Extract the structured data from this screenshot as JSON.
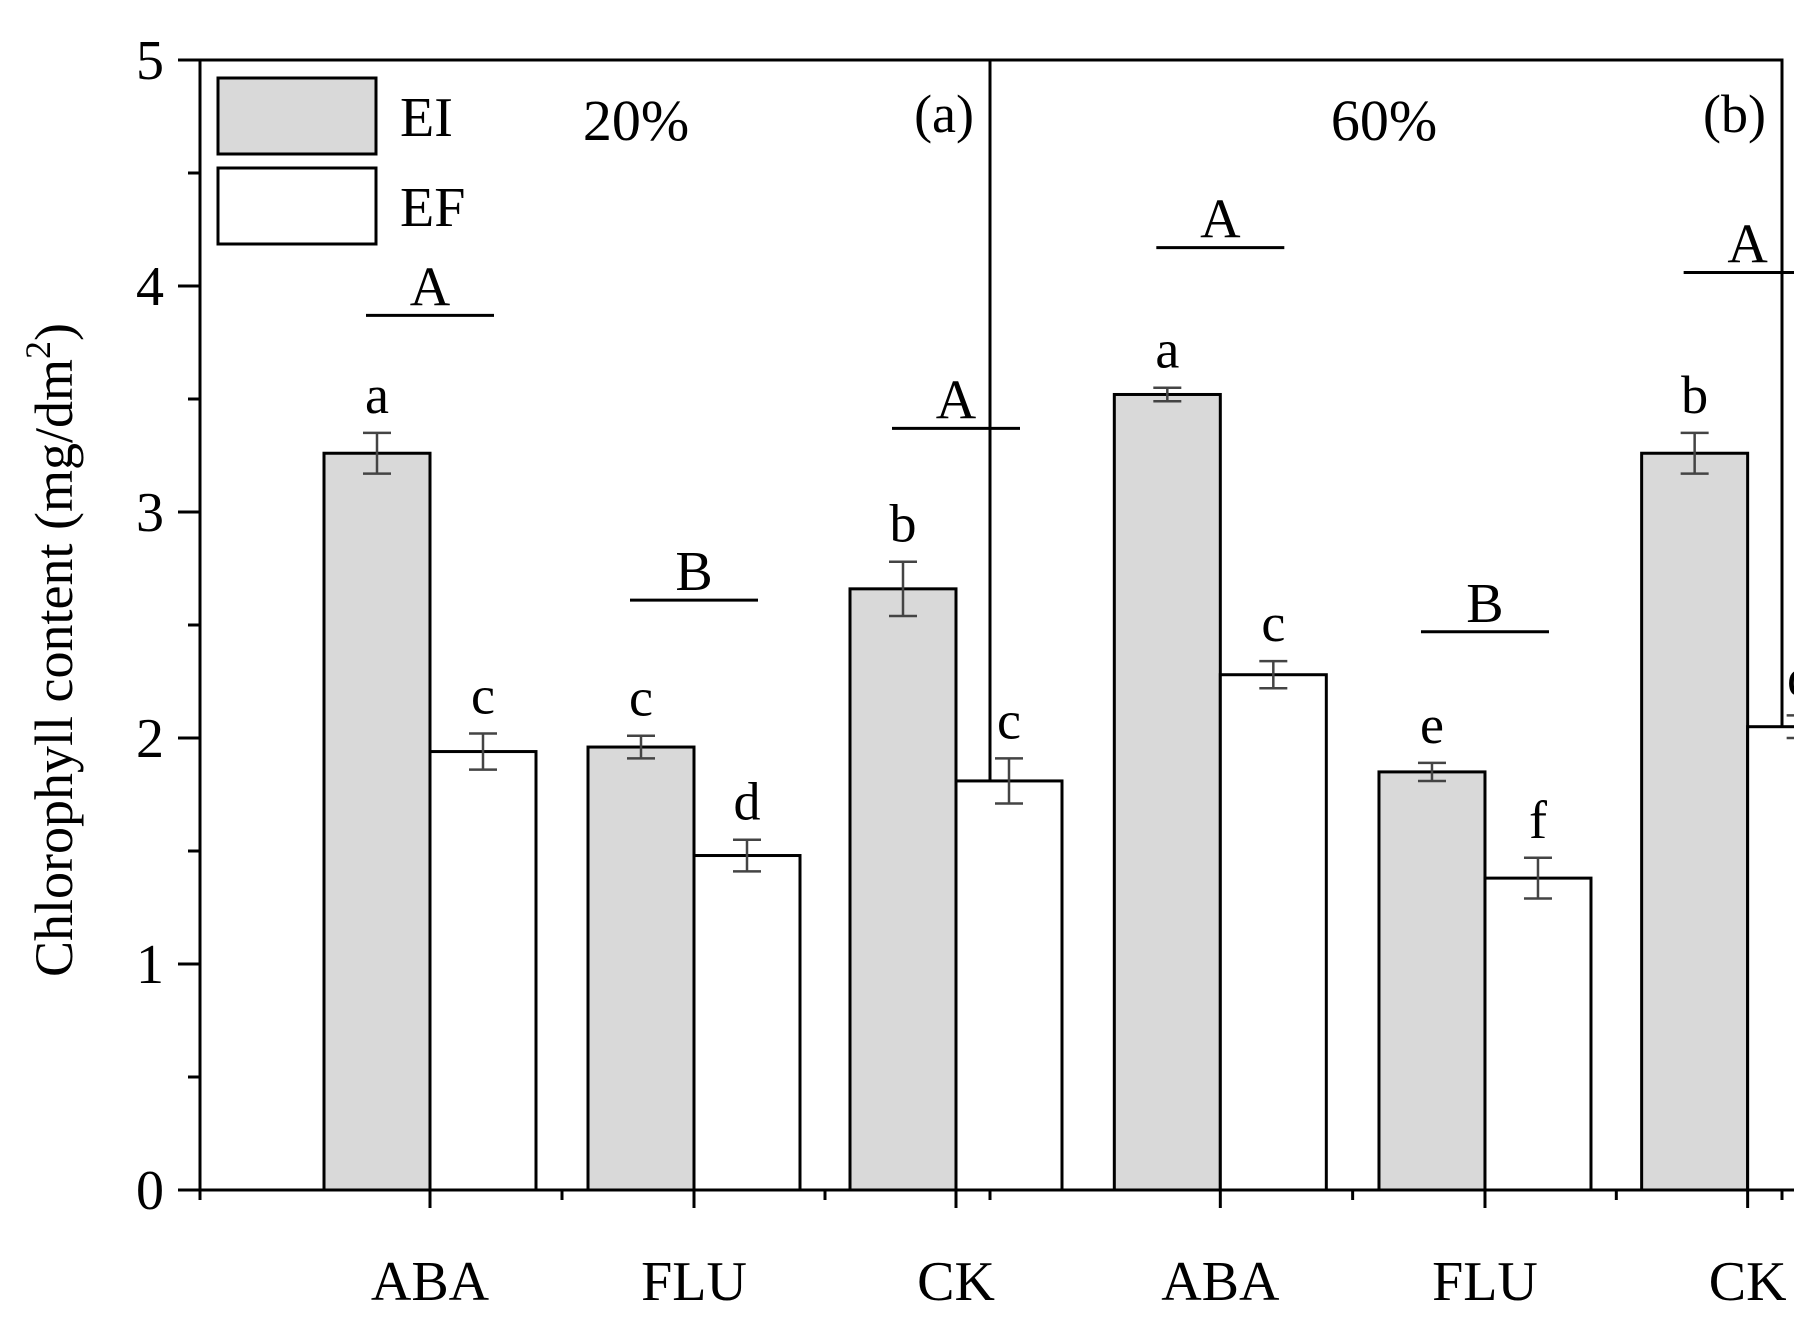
{
  "chart_data": {
    "type": "bar",
    "ylabel": "Chlorophyll content (mg/dm²)",
    "ylabel_main": "Chlorophyll content (mg/dm",
    "ylabel_sup": "2",
    "ylabel_close": ")",
    "ylim": [
      0,
      5
    ],
    "yticks": [
      "0",
      "1",
      "2",
      "3",
      "4",
      "5"
    ],
    "legend": {
      "placement": "top-left",
      "entries": [
        {
          "name": "EI",
          "color": "#d9d9d9"
        },
        {
          "name": "EF",
          "color": "#ffffff"
        }
      ]
    },
    "panels": [
      {
        "title": "20%",
        "tag": "(a)",
        "categories": [
          "ABA",
          "FLU",
          "CK"
        ],
        "series": [
          {
            "name": "EI",
            "values": [
              3.26,
              1.96,
              2.66
            ],
            "errors": [
              0.09,
              0.05,
              0.12
            ],
            "letters": [
              "a",
              "c",
              "b"
            ]
          },
          {
            "name": "EF",
            "values": [
              1.94,
              1.48,
              1.81
            ],
            "errors": [
              0.08,
              0.07,
              0.1
            ],
            "letters": [
              "c",
              "d",
              "c"
            ]
          }
        ],
        "group_letters": [
          {
            "label": "A",
            "y": 3.87
          },
          {
            "label": "B",
            "y": 2.61
          },
          {
            "label": "A",
            "y": 3.37
          }
        ]
      },
      {
        "title": "60%",
        "tag": "(b)",
        "categories": [
          "ABA",
          "FLU",
          "CK"
        ],
        "series": [
          {
            "name": "EI",
            "values": [
              3.52,
              1.85,
              3.26
            ],
            "errors": [
              0.03,
              0.04,
              0.09
            ],
            "letters": [
              "a",
              "e",
              "b"
            ]
          },
          {
            "name": "EF",
            "values": [
              2.28,
              1.38,
              2.05
            ],
            "errors": [
              0.06,
              0.09,
              0.05
            ],
            "letters": [
              "c",
              "f",
              "d"
            ]
          }
        ],
        "group_letters": [
          {
            "label": "A",
            "y": 4.17
          },
          {
            "label": "B",
            "y": 2.47
          },
          {
            "label": "A",
            "y": 4.06
          }
        ]
      }
    ]
  }
}
